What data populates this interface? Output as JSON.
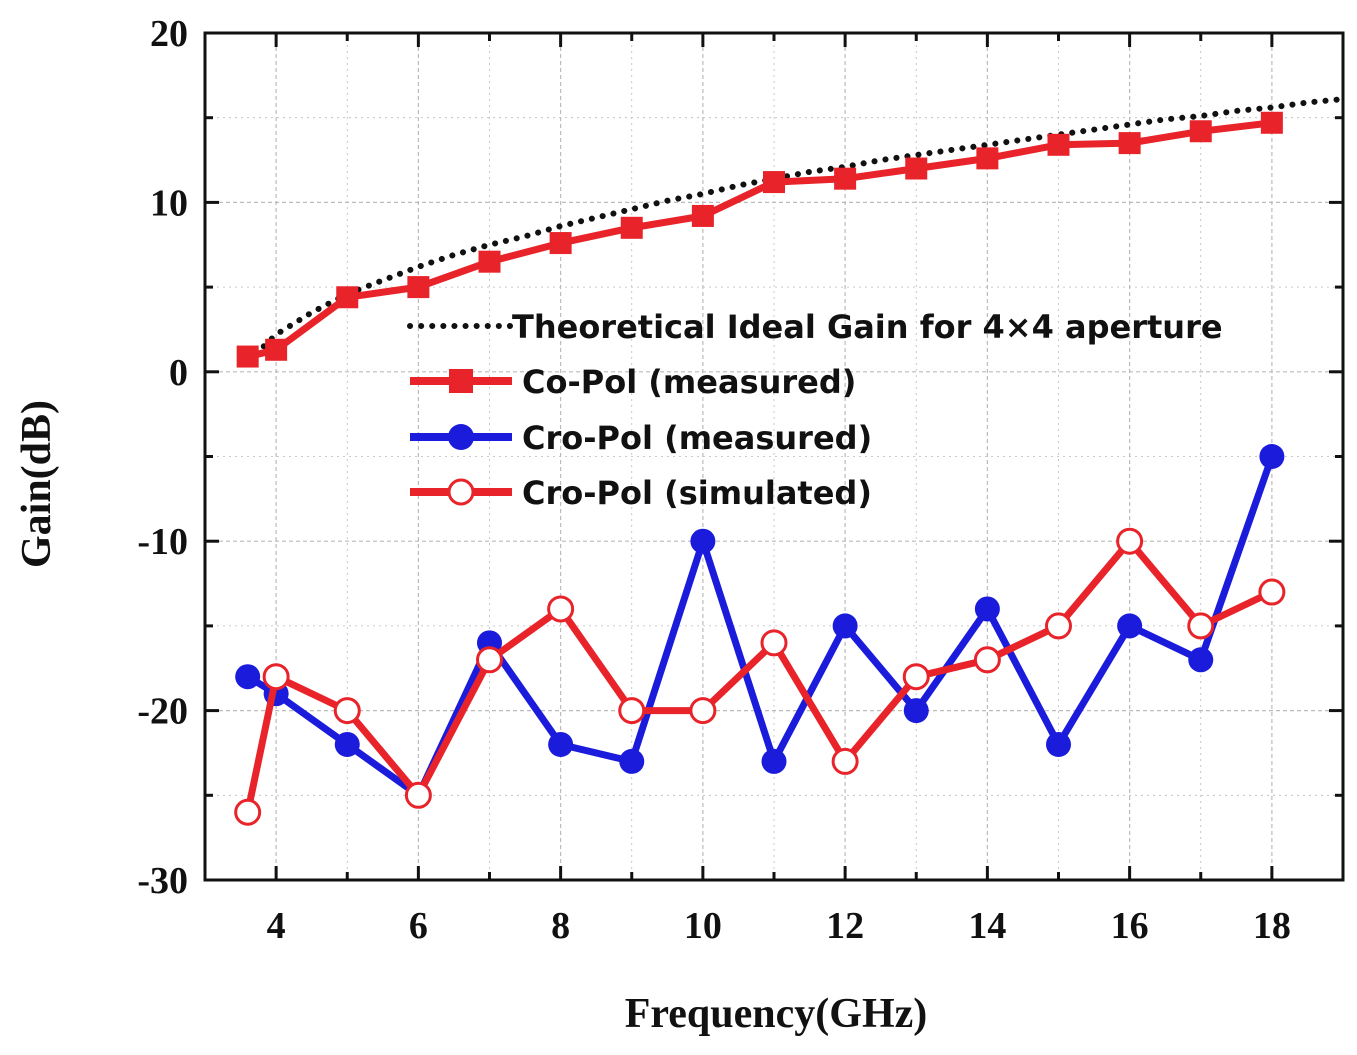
{
  "chart_data": {
    "type": "line",
    "title": "",
    "xlabel": "Frequency(GHz)",
    "ylabel": "Gain(dB)",
    "xlim": [
      3,
      19
    ],
    "ylim": [
      -30,
      20
    ],
    "xticks": [
      4,
      6,
      8,
      10,
      12,
      14,
      16,
      18
    ],
    "yticks": [
      -30,
      -20,
      -10,
      0,
      10,
      20
    ],
    "xtick_labels": [
      "4",
      "6",
      "8",
      "10",
      "12",
      "14",
      "16",
      "18"
    ],
    "ytick_labels": [
      "-30",
      "-20",
      "-10",
      "0",
      "10",
      "20"
    ],
    "grid": true,
    "legend_position": "upper-center",
    "colors": {
      "red": "#e8242a",
      "blue": "#1b1bdc",
      "black": "#111111",
      "grid": "#bbbbbb"
    },
    "series": [
      {
        "name": "Theoretical Ideal Gain for 4×4 aperture",
        "style": "dotted",
        "color": "#111111",
        "x": [
          3.6,
          4,
          4.5,
          5,
          5.5,
          6,
          6.5,
          7,
          7.5,
          8,
          8.5,
          9,
          9.5,
          10,
          10.5,
          11,
          11.5,
          12,
          12.5,
          13,
          13.5,
          14,
          14.5,
          15,
          15.5,
          16,
          16.5,
          17,
          17.5,
          18,
          18.5,
          19
        ],
        "y": [
          0.6,
          2.2,
          3.5,
          4.6,
          5.4,
          6.2,
          6.9,
          7.5,
          8.0,
          8.6,
          9.1,
          9.6,
          10.1,
          10.5,
          11.0,
          11.4,
          11.8,
          12.1,
          12.5,
          12.8,
          13.1,
          13.4,
          13.7,
          14.0,
          14.3,
          14.6,
          14.9,
          15.1,
          15.4,
          15.6,
          15.9,
          16.1
        ]
      },
      {
        "name": "Co-Pol (measured)",
        "style": "solid",
        "marker": "square",
        "color": "#e8242a",
        "x": [
          3.6,
          4,
          5,
          6,
          7,
          8,
          9,
          10,
          11,
          12,
          13,
          14,
          15,
          16,
          17,
          18
        ],
        "y": [
          0.9,
          1.3,
          4.4,
          5.0,
          6.5,
          7.6,
          8.5,
          9.2,
          11.2,
          11.4,
          12.0,
          12.6,
          13.4,
          13.5,
          14.2,
          14.7
        ]
      },
      {
        "name": "Cro-Pol (measured)",
        "style": "solid",
        "marker": "circle-filled",
        "color": "#1b1bdc",
        "x": [
          3.6,
          4,
          5,
          6,
          7,
          8,
          9,
          10,
          11,
          12,
          13,
          14,
          15,
          16,
          17,
          18
        ],
        "y": [
          -18,
          -19,
          -22,
          -25,
          -16,
          -22,
          -23,
          -10,
          -23,
          -15,
          -20,
          -14,
          -22,
          -15,
          -17,
          -5
        ]
      },
      {
        "name": "Cro-Pol (simulated)",
        "style": "solid",
        "marker": "circle-open",
        "color": "#e8242a",
        "x": [
          3.6,
          4,
          5,
          6,
          7,
          8,
          9,
          10,
          11,
          12,
          13,
          14,
          15,
          16,
          17,
          18
        ],
        "y": [
          -26,
          -18,
          -20,
          -25,
          -17,
          -14,
          -20,
          -20,
          -16,
          -23,
          -18,
          -17,
          -15,
          -10,
          -15,
          -13
        ]
      }
    ]
  }
}
